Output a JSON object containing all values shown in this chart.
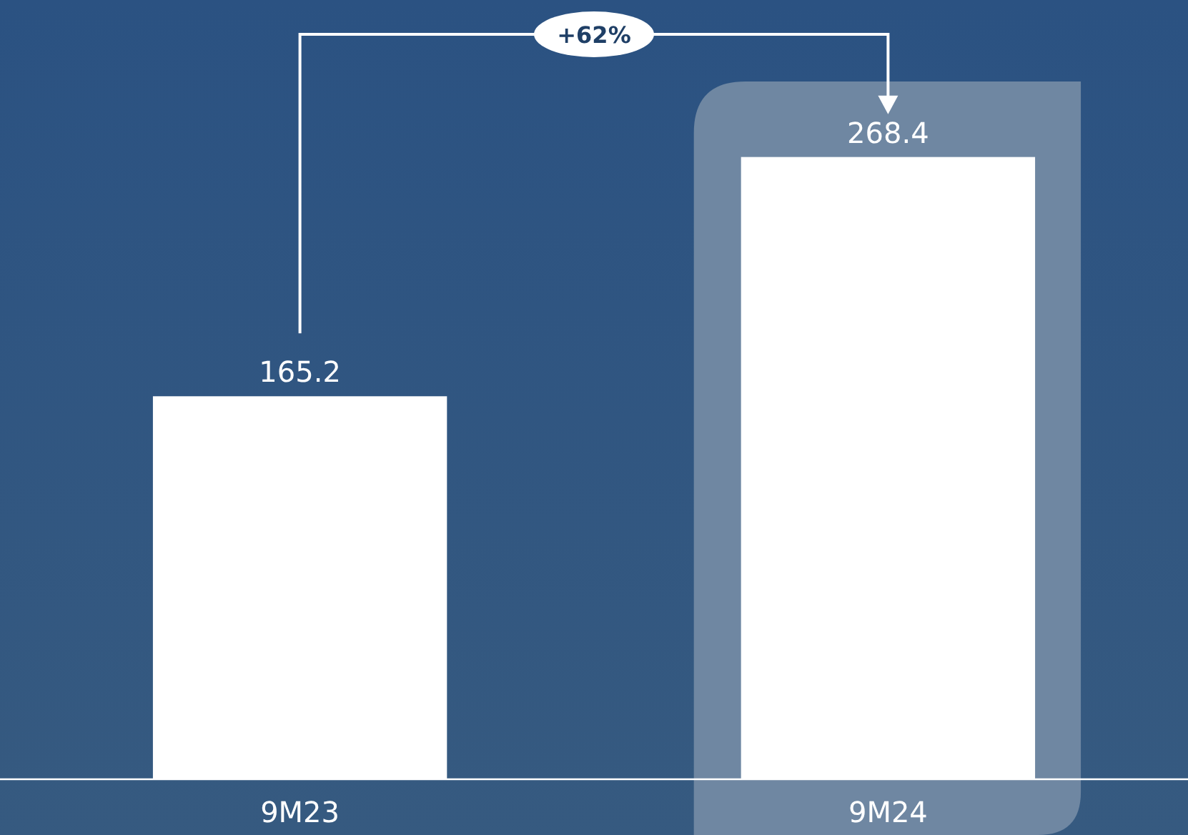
{
  "chart_data": {
    "type": "bar",
    "categories": [
      "9M23",
      "9M24"
    ],
    "values": [
      165.2,
      268.4
    ],
    "color": "#ffffff",
    "data_labels": true,
    "tick_labels": "x",
    "annotations": [
      "+62%"
    ],
    "bands": [
      {
        "axis": "x",
        "from": "9M24",
        "to": "9M24",
        "color": "#6f87a2"
      }
    ]
  }
}
